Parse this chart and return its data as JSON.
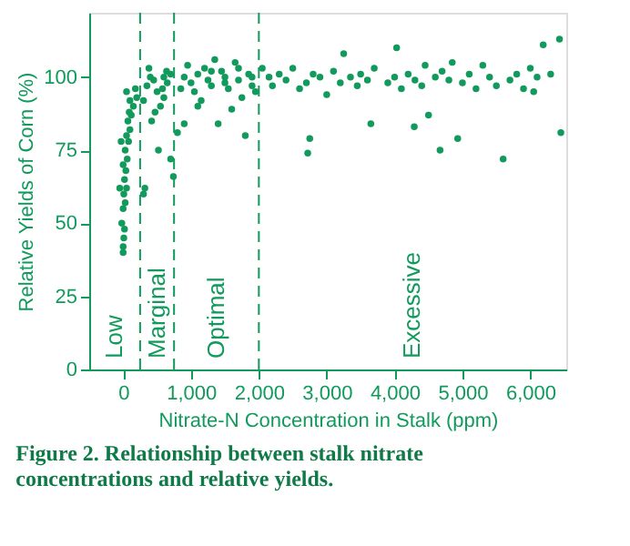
{
  "chart_data": {
    "type": "scatter",
    "title": "Figure 2. Relationship between stalk nitrate concentrations and relative yields.",
    "xlabel": "Nitrate-N Concentration in Stalk (ppm)",
    "ylabel": "Relative Yields of Corn (%)",
    "xlim": [
      -500,
      6530
    ],
    "ylim": [
      0,
      122
    ],
    "xticks": [
      {
        "value": 0,
        "label": "0"
      },
      {
        "value": 1000,
        "label": "1,000"
      },
      {
        "value": 2000,
        "label": "2,000"
      },
      {
        "value": 3000,
        "label": "3,000"
      },
      {
        "value": 4000,
        "label": "4,000"
      },
      {
        "value": 5000,
        "label": "5,000"
      },
      {
        "value": 6000,
        "label": "6,000"
      }
    ],
    "yticks": [
      0,
      25,
      50,
      75,
      100
    ],
    "marker": "circle",
    "series": [
      {
        "color": "#119a5c",
        "x": [
          0,
          0,
          10,
          20,
          -20,
          0,
          30,
          10,
          50,
          20,
          40,
          0,
          60,
          30,
          80,
          50,
          100,
          70,
          120,
          90,
          150,
          100,
          200,
          50,
          180,
          -50,
          -30,
          300,
          320,
          350,
          400,
          450,
          500,
          550,
          600,
          650,
          700,
          420,
          470,
          520,
          580,
          640,
          700,
          740,
          300,
          380,
          600,
          800,
          850,
          900,
          950,
          1000,
          1050,
          1100,
          1150,
          1200,
          1250,
          1300,
          1350,
          1400,
          1450,
          1500,
          1550,
          1600,
          1650,
          1700,
          1750,
          1800,
          1850,
          1900,
          1950,
          900,
          1100,
          1300,
          1500,
          1700,
          1900,
          2050,
          2150,
          2200,
          2300,
          2400,
          2500,
          2600,
          2700,
          2800,
          2900,
          3000,
          2750,
          2720,
          3100,
          3200,
          3250,
          3350,
          3450,
          3500,
          3600,
          3700,
          3650,
          3900,
          4000,
          4030,
          4100,
          4200,
          4290,
          4300,
          4400,
          4450,
          4500,
          4600,
          4670,
          4700,
          4800,
          4850,
          4930,
          5000,
          5100,
          5200,
          5300,
          5400,
          5500,
          5600,
          5700,
          5800,
          5900,
          6000,
          6050,
          6100,
          6190,
          6300,
          6430,
          6450
        ],
        "values": [
          40,
          42,
          45,
          48,
          50,
          55,
          57,
          60,
          62,
          65,
          68,
          70,
          72,
          75,
          78,
          80,
          82,
          85,
          87,
          88,
          90,
          92,
          93,
          95,
          96,
          62,
          78,
          60,
          62,
          97,
          100,
          99,
          95,
          90,
          93,
          98,
          101,
          85,
          88,
          75,
          96,
          102,
          72,
          66,
          92,
          103,
          100,
          81,
          96,
          100,
          104,
          98,
          95,
          101,
          92,
          103,
          99,
          97,
          106,
          84,
          102,
          100,
          96,
          89,
          105,
          99,
          93,
          80,
          101,
          97,
          95,
          84,
          90,
          102,
          98,
          103,
          100,
          103,
          100,
          97,
          101,
          99,
          103,
          96,
          98,
          101,
          100,
          94,
          79,
          74,
          102,
          98,
          108,
          100,
          97,
          101,
          99,
          103,
          84,
          98,
          100,
          110,
          96,
          101,
          83,
          99,
          97,
          104,
          87,
          100,
          75,
          102,
          99,
          105,
          79,
          98,
          101,
          96,
          104,
          100,
          97,
          72,
          99,
          101,
          96,
          103,
          95,
          100,
          111,
          101,
          113,
          81
        ]
      }
    ],
    "ref_lines": [
      {
        "axis": "x",
        "value": 250,
        "color": "#119a5c",
        "line_style": "dashed"
      },
      {
        "axis": "x",
        "value": 750,
        "color": "#119a5c",
        "line_style": "dashed"
      },
      {
        "axis": "x",
        "value": 2000,
        "color": "#119a5c",
        "line_style": "dashed"
      }
    ],
    "annotations": [
      "Low",
      "Marginal",
      "Optimal",
      "Excessive"
    ]
  }
}
